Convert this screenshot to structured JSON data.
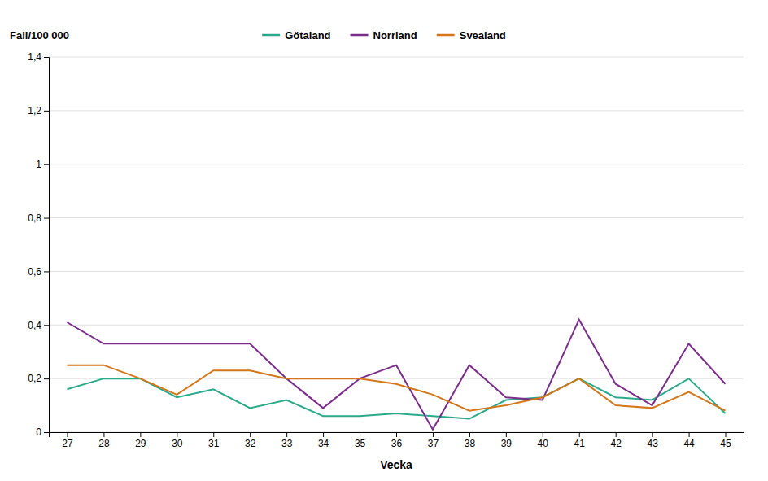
{
  "chart_data": {
    "type": "line",
    "xlabel": "Vecka",
    "ylabel": "Fall/100 000",
    "x": [
      27,
      28,
      29,
      30,
      31,
      32,
      33,
      34,
      35,
      36,
      37,
      38,
      39,
      40,
      41,
      42,
      43,
      44,
      45
    ],
    "xlim": [
      26.5,
      45.5
    ],
    "xticks": [
      27,
      28,
      29,
      30,
      31,
      32,
      33,
      34,
      35,
      36,
      37,
      38,
      39,
      40,
      41,
      42,
      43,
      44,
      45
    ],
    "ylim": [
      0,
      1.4
    ],
    "yticks": [
      0,
      {
        "value": 0.2,
        "label": "0,2"
      },
      {
        "value": 0.4,
        "label": "0,4"
      },
      {
        "value": 0.6,
        "label": "0,6"
      },
      {
        "value": 0.8,
        "label": "0,8"
      },
      1,
      {
        "value": 1.2,
        "label": "1,2"
      },
      {
        "value": 1.4,
        "label": "1,4"
      }
    ],
    "grid": true,
    "legend": "top",
    "series": [
      {
        "name": "Götaland",
        "color": "#2aaa8a",
        "values": [
          0.16,
          0.2,
          0.2,
          0.13,
          0.16,
          0.09,
          0.12,
          0.06,
          0.06,
          0.07,
          0.06,
          0.05,
          0.12,
          0.13,
          0.2,
          0.13,
          0.12,
          0.2,
          0.07
        ]
      },
      {
        "name": "Norrland",
        "color": "#7b2d8b",
        "values": [
          0.41,
          0.33,
          0.33,
          0.33,
          0.33,
          0.33,
          0.2,
          0.09,
          0.2,
          0.25,
          0.01,
          0.25,
          0.13,
          0.12,
          0.42,
          0.18,
          0.1,
          0.33,
          0.18
        ]
      },
      {
        "name": "Svealand",
        "color": "#d4771a",
        "values": [
          0.25,
          0.25,
          0.2,
          0.14,
          0.23,
          0.23,
          0.2,
          0.2,
          0.2,
          0.18,
          0.14,
          0.08,
          0.1,
          0.13,
          0.2,
          0.1,
          0.09,
          0.15,
          0.08
        ]
      }
    ]
  }
}
